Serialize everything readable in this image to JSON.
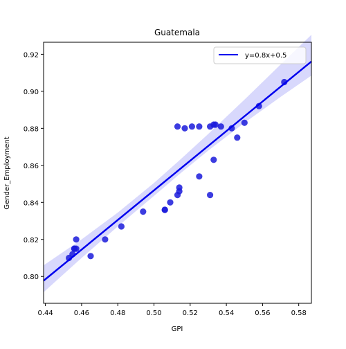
{
  "chart_data": {
    "type": "scatter",
    "title": "Guatemala",
    "xlabel": "GPI",
    "ylabel": "Gender_Employment",
    "xlim": [
      0.439,
      0.587
    ],
    "ylim": [
      0.7855,
      0.9265
    ],
    "xticks": [
      0.44,
      0.46,
      0.48,
      0.5,
      0.52,
      0.54,
      0.56,
      0.58
    ],
    "xtick_labels": [
      "0.44",
      "0.46",
      "0.48",
      "0.50",
      "0.52",
      "0.54",
      "0.56",
      "0.58"
    ],
    "yticks": [
      0.8,
      0.82,
      0.84,
      0.86,
      0.88,
      0.9,
      0.92
    ],
    "ytick_labels": [
      "0.80",
      "0.82",
      "0.84",
      "0.86",
      "0.88",
      "0.90",
      "0.92"
    ],
    "legend_position": "top-right",
    "grid": false,
    "colors": {
      "points": "#1a1adb",
      "line": "#0000ee",
      "band": "#d8d8fc"
    },
    "series": [
      {
        "name": "y=0.8x+0.5",
        "type": "regression-line",
        "slope": 0.8,
        "intercept": 0.4465,
        "line_x": [
          0.439,
          0.587
        ],
        "ci_band": {
          "x": [
            0.439,
            0.46,
            0.48,
            0.5,
            0.515,
            0.53,
            0.55,
            0.57,
            0.587
          ],
          "lower": [
            0.7915,
            0.81,
            0.827,
            0.8435,
            0.856,
            0.868,
            0.883,
            0.897,
            0.9085
          ],
          "upper": [
            0.806,
            0.82,
            0.8345,
            0.8505,
            0.8635,
            0.877,
            0.8955,
            0.9145,
            0.9305
          ]
        }
      },
      {
        "type": "points",
        "x": [
          0.453,
          0.455,
          0.456,
          0.456,
          0.457,
          0.457,
          0.465,
          0.473,
          0.482,
          0.494,
          0.506,
          0.506,
          0.509,
          0.513,
          0.514,
          0.514,
          0.513,
          0.517,
          0.521,
          0.525,
          0.525,
          0.531,
          0.531,
          0.533,
          0.534,
          0.537,
          0.533,
          0.543,
          0.546,
          0.55,
          0.558,
          0.572
        ],
        "y": [
          0.81,
          0.812,
          0.815,
          0.815,
          0.815,
          0.82,
          0.811,
          0.82,
          0.827,
          0.835,
          0.836,
          0.836,
          0.84,
          0.844,
          0.846,
          0.848,
          0.881,
          0.88,
          0.881,
          0.881,
          0.854,
          0.844,
          0.881,
          0.882,
          0.882,
          0.881,
          0.863,
          0.88,
          0.875,
          0.883,
          0.892,
          0.905
        ]
      }
    ]
  }
}
